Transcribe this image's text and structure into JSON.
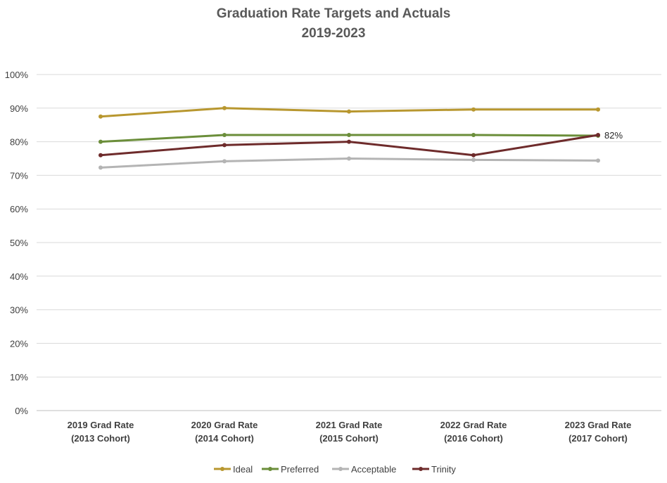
{
  "chart_data": {
    "type": "line",
    "title": "Graduation Rate Targets and Actuals",
    "subtitle": "2019-2023",
    "xlabel": "",
    "ylabel": "",
    "ylim": [
      0,
      100
    ],
    "yticks": [
      "0%",
      "10%",
      "20%",
      "30%",
      "40%",
      "50%",
      "60%",
      "70%",
      "80%",
      "90%",
      "100%"
    ],
    "categories": [
      [
        "2019 Grad Rate",
        "(2013 Cohort)"
      ],
      [
        "2020 Grad Rate",
        "(2014 Cohort)"
      ],
      [
        "2021 Grad Rate",
        "(2015 Cohort)"
      ],
      [
        "2022 Grad Rate",
        "(2016 Cohort)"
      ],
      [
        "2023 Grad Rate",
        "(2017 Cohort)"
      ]
    ],
    "series": [
      {
        "name": "Ideal",
        "color": "#B8972F",
        "values": [
          87.5,
          90,
          89,
          89.6,
          89.6
        ]
      },
      {
        "name": "Preferred",
        "color": "#6B8E3A",
        "values": [
          80,
          82,
          82,
          82,
          81.8
        ]
      },
      {
        "name": "Acceptable",
        "color": "#B4B4B4",
        "values": [
          72.3,
          74.2,
          75,
          74.6,
          74.4
        ]
      },
      {
        "name": "Trinity",
        "color": "#6E2B2B",
        "values": [
          76,
          79,
          80,
          76,
          82
        ]
      }
    ],
    "data_labels": [
      {
        "series": "Trinity",
        "index": 4,
        "text": "82%"
      }
    ],
    "legend": "bottom",
    "grid": true
  }
}
